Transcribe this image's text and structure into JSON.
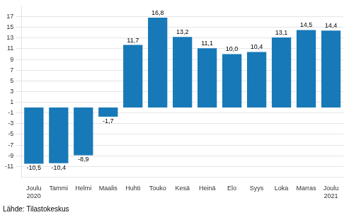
{
  "chart_data": {
    "type": "bar",
    "categories": [
      "Joulu\n2020",
      "Tammi",
      "Helmi",
      "Maalis",
      "Huhti",
      "Touko",
      "Kesä",
      "Heinä",
      "Elo",
      "Syys",
      "Loka",
      "Marras",
      "Joulu\n2021"
    ],
    "values": [
      -10.5,
      -10.4,
      -8.9,
      -1.7,
      11.7,
      16.8,
      13.2,
      11.1,
      10.0,
      10.4,
      13.1,
      14.5,
      14.4
    ],
    "value_labels": [
      "-10,5",
      "-10,4",
      "-8,9",
      "-1,7",
      "11,7",
      "16,8",
      "13,2",
      "11,1",
      "10,0",
      "10,4",
      "13,1",
      "14,5",
      "14,4"
    ],
    "data_labels": true,
    "color": "#1779B8",
    "ylim": [
      -13.0,
      19.0
    ],
    "yticks": [
      -11,
      -9,
      -7,
      -5,
      -3,
      -1,
      1,
      3,
      5,
      7,
      9,
      11,
      13,
      15,
      17
    ],
    "grid": true,
    "annotations": [
      "Lähde: Tilastokeskus"
    ]
  }
}
